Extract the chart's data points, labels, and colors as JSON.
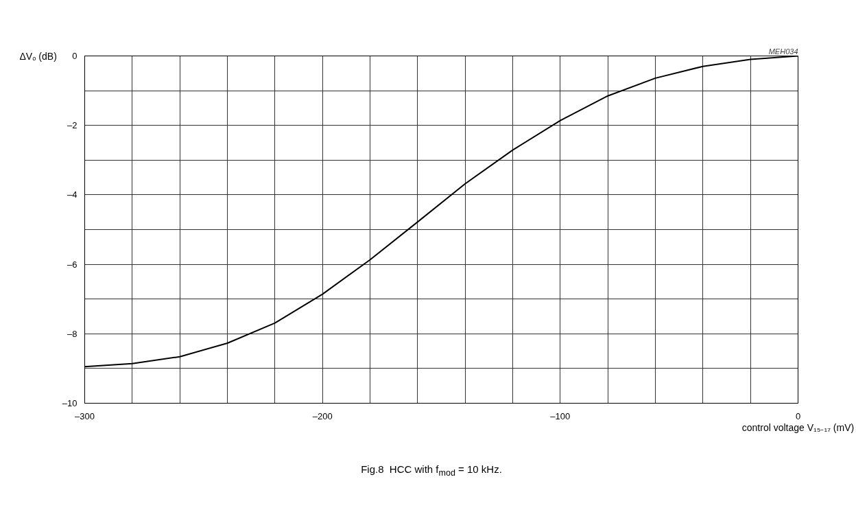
{
  "chart_data": {
    "type": "line",
    "xlabel": "control voltage V₁₅₋₁₇ (mV)",
    "ylabel": "ΔVₒ (dB)",
    "x": [
      -300,
      -280,
      -260,
      -240,
      -220,
      -200,
      -180,
      -160,
      -140,
      -120,
      -100,
      -80,
      -60,
      -40,
      -20,
      0
    ],
    "series": [
      {
        "color": "#000000",
        "values": [
          -8.95,
          -8.86,
          -8.66,
          -8.27,
          -7.69,
          -6.86,
          -5.87,
          -4.78,
          -3.68,
          -2.71,
          -1.86,
          -1.15,
          -0.64,
          -0.3,
          -0.1,
          0
        ]
      }
    ],
    "xlim": [
      -300,
      0
    ],
    "xticks": [
      {
        "value": -300,
        "label": "–300"
      },
      {
        "value": -280,
        "label": null
      },
      {
        "value": -260,
        "label": null
      },
      {
        "value": -240,
        "label": null
      },
      {
        "value": -220,
        "label": null
      },
      {
        "value": -200,
        "label": "–200"
      },
      {
        "value": -180,
        "label": null
      },
      {
        "value": -160,
        "label": null
      },
      {
        "value": -140,
        "label": null
      },
      {
        "value": -120,
        "label": null
      },
      {
        "value": -100,
        "label": "–100"
      },
      {
        "value": -80,
        "label": null
      },
      {
        "value": -60,
        "label": null
      },
      {
        "value": -40,
        "label": null
      },
      {
        "value": -20,
        "label": null
      },
      0
    ],
    "ylim": [
      -10,
      0
    ],
    "yticks": [
      {
        "value": -10,
        "label": "–10"
      },
      {
        "value": -9,
        "label": null
      },
      {
        "value": -8,
        "label": "–8"
      },
      {
        "value": -7,
        "label": null
      },
      {
        "value": -6,
        "label": "–6"
      },
      {
        "value": -5,
        "label": null
      },
      {
        "value": -4,
        "label": "–4"
      },
      {
        "value": -3,
        "label": null
      },
      {
        "value": -2,
        "label": "–2"
      },
      {
        "value": -1,
        "label": null
      },
      0
    ],
    "grid": true,
    "line_style": "solid",
    "marker": "none",
    "annotations": [
      "MEH034",
      "Fig.8  HCC with f$_{mod}$ = 10 kHz."
    ]
  }
}
